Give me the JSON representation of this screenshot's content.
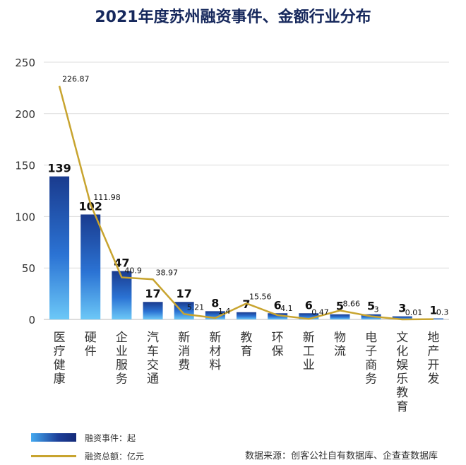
{
  "chart_data": {
    "type": "bar",
    "title": "2021年度苏州融资事件、金额行业分布",
    "categories": [
      "医疗健康",
      "硬件",
      "企业服务",
      "汽车交通",
      "新消费",
      "新材料",
      "教育",
      "环保",
      "新工业",
      "物流",
      "电子商务",
      "文化娱乐教育",
      "地产开发"
    ],
    "series": [
      {
        "name": "融资事件：起",
        "type": "bar",
        "values": [
          139,
          102,
          47,
          17,
          17,
          8,
          7,
          6,
          6,
          5,
          5,
          3,
          1
        ]
      },
      {
        "name": "融资总额：亿元",
        "type": "line",
        "values": [
          226.87,
          111.98,
          40.9,
          38.97,
          5.21,
          1.4,
          15.56,
          4.1,
          0.47,
          8.66,
          3,
          0.01,
          0.3
        ]
      }
    ],
    "yticks": [
      0,
      50,
      100,
      150,
      200,
      250
    ],
    "ylim": [
      0,
      250
    ],
    "grid": true,
    "legend": "bottom-left",
    "colors": {
      "bar_top": "#1a3b8e",
      "bar_bottom": "#5cc0f5",
      "line": "#c8a42f",
      "title": "#16285c",
      "grid": "#dddddd"
    }
  },
  "legend": {
    "bar_label": "融资事件：起",
    "line_label": "融资总额：亿元"
  },
  "source": "数据来源：创客公社自有数据库、企查查数据库"
}
